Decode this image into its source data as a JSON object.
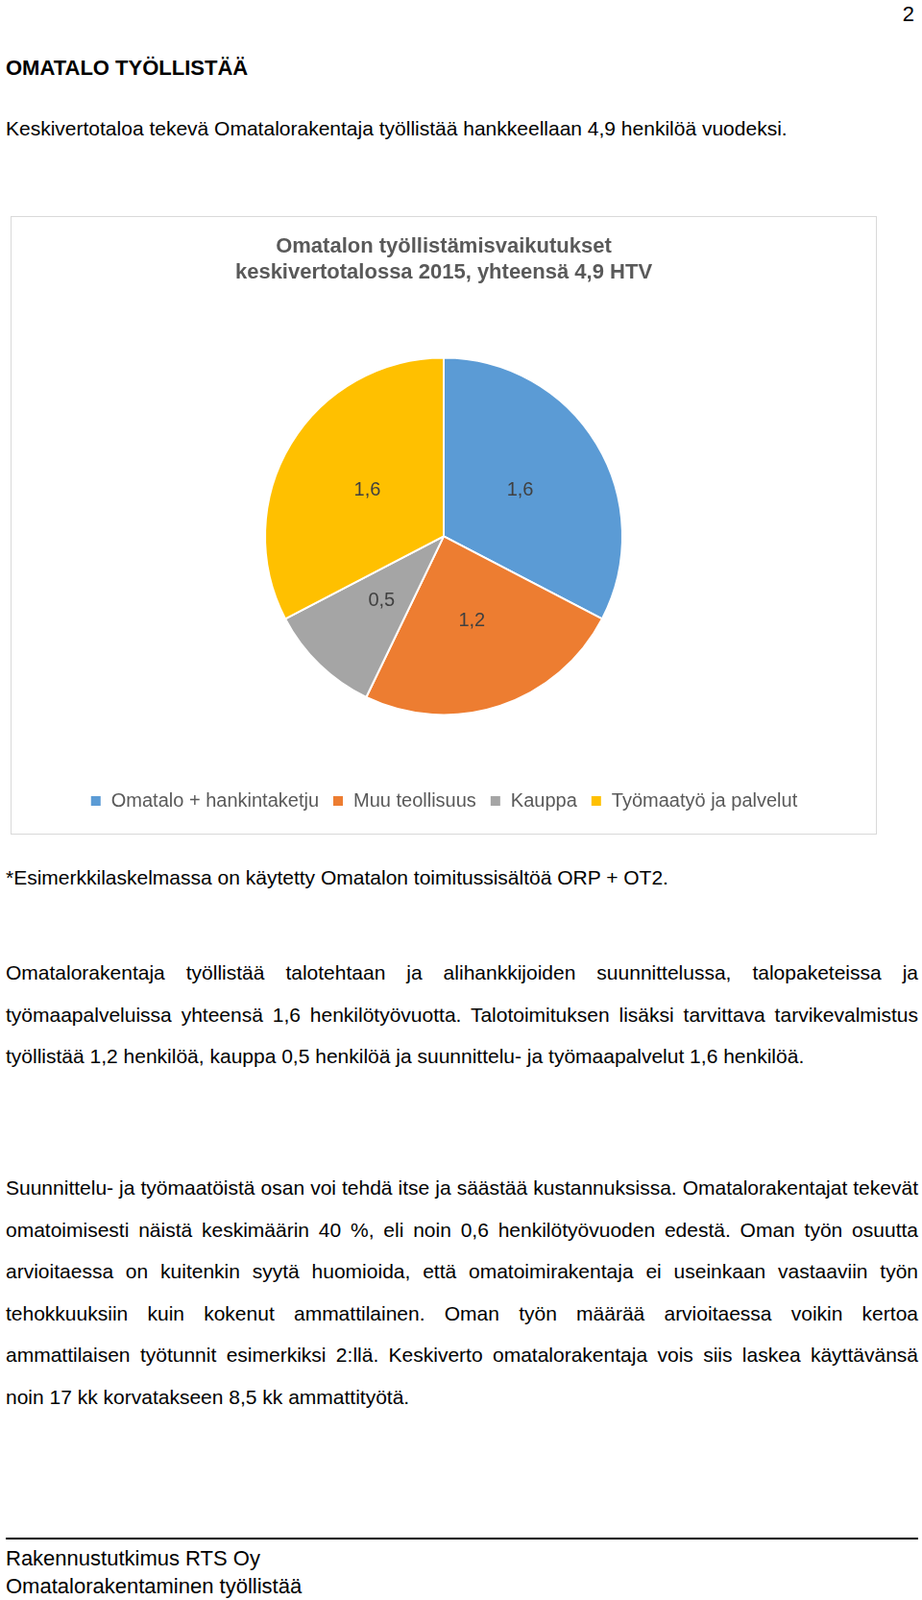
{
  "page_number": 2,
  "heading": "OMATALO TYÖLLISTÄÄ",
  "intro": "Keskivertotaloa tekevä Omatalorakentaja työllistää hankkeellaan 4,9 henkilöä vuodeksi.",
  "chart_data": {
    "type": "pie",
    "title": [
      "Omatalon työllistämisvaikutukset",
      "keskivertotalossa 2015, yhteensä 4,9 HTV"
    ],
    "categories": [
      "Omatalo + hankintaketju",
      "Muu teollisuus",
      "Kauppa",
      "Työmaatyö ja palvelut"
    ],
    "values": [
      1.6,
      1.2,
      0.5,
      1.6
    ],
    "value_labels": [
      "1,6",
      "1,2",
      "0,5",
      "1,6"
    ],
    "colors": [
      "#5b9bd5",
      "#ed7d31",
      "#a5a5a5",
      "#ffc000"
    ],
    "data_labels": true,
    "legend": "bottom"
  },
  "note": "*Esimerkkilaskelmassa on käytetty Omatalon toimitussisältöä ORP + OT2.",
  "paragraphs": [
    "Omatalorakentaja työllistää talotehtaan ja alihankkijoiden suunnittelussa, talopaketeissa ja työmaapalveluissa yhteensä 1,6 henkilötyövuotta. Talotoimituksen lisäksi tarvittava tarvikevalmistus työllistää 1,2 henkilöä, kauppa 0,5 henkilöä ja suunnittelu- ja työmaapalvelut 1,6 henkilöä.",
    "Suunnittelu- ja työmaatöistä osan voi tehdä itse ja säästää kustannuksissa. Omatalorakentajat tekevät omatoimisesti näistä keskimäärin 40 %, eli noin 0,6 henkilötyövuoden edestä. Oman työn osuutta arvioitaessa on kuitenkin syytä huomioida, että omatoimirakentaja ei useinkaan vastaaviin työn tehokkuuksiin kuin kokenut ammattilainen. Oman työn määrää arvioitaessa voikin kertoa ammattilaisen työtunnit esimerkiksi 2:llä. Keskiverto omatalorakentaja vois siis laskea käyttävänsä noin 17 kk korvatakseen 8,5 kk ammattityötä."
  ],
  "footer": [
    "Rakennustutkimus RTS Oy",
    "Omatalorakentaminen työllistää"
  ]
}
